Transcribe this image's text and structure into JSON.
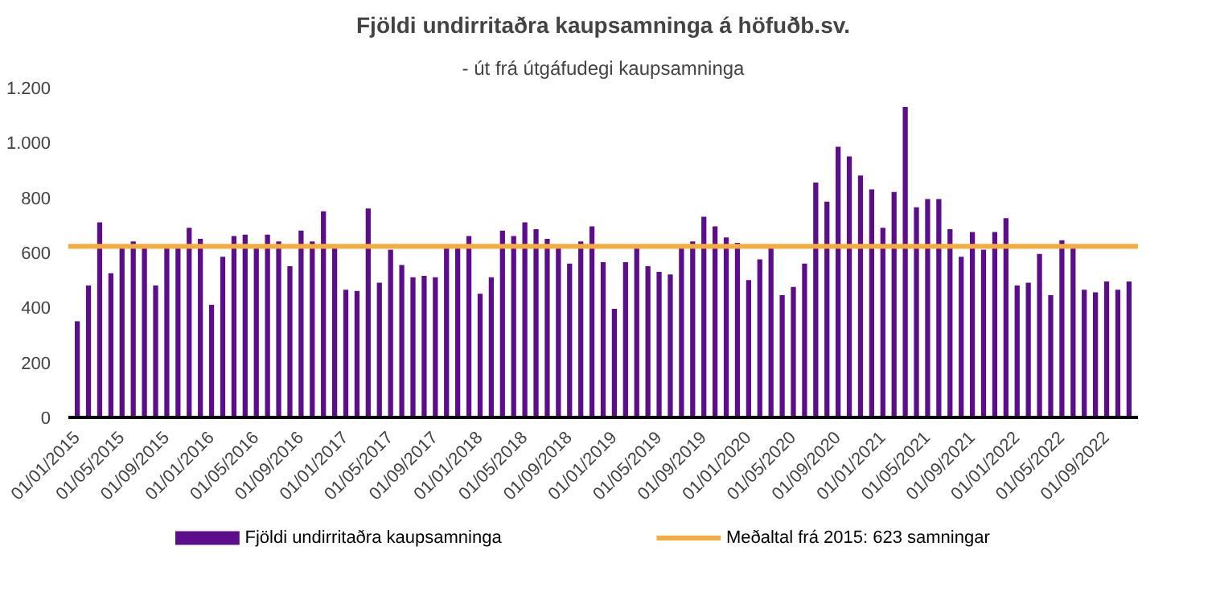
{
  "chart_data": {
    "type": "bar",
    "title": "Fjöldi undirritaðra kaupsamninga á höfuðb.sv.",
    "subtitle": "- út frá útgáfudegi kaupsamninga",
    "categories": [
      "01/01/2015",
      null,
      null,
      null,
      "01/05/2015",
      null,
      null,
      null,
      "01/09/2015",
      null,
      null,
      null,
      "01/01/2016",
      null,
      null,
      null,
      "01/05/2016",
      null,
      null,
      null,
      "01/09/2016",
      null,
      null,
      null,
      "01/01/2017",
      null,
      null,
      null,
      "01/05/2017",
      null,
      null,
      null,
      "01/09/2017",
      null,
      null,
      null,
      "01/01/2018",
      null,
      null,
      null,
      "01/05/2018",
      null,
      null,
      null,
      "01/09/2018",
      null,
      null,
      null,
      "01/01/2019",
      null,
      null,
      null,
      "01/05/2019",
      null,
      null,
      null,
      "01/09/2019",
      null,
      null,
      null,
      "01/01/2020",
      null,
      null,
      null,
      "01/05/2020",
      null,
      null,
      null,
      "01/09/2020",
      null,
      null,
      null,
      "01/01/2021",
      null,
      null,
      null,
      "01/05/2021",
      null,
      null,
      null,
      "01/09/2021",
      null,
      null,
      null,
      "01/01/2022",
      null,
      null,
      null,
      "01/05/2022",
      null,
      null,
      null,
      "01/09/2022",
      null,
      null
    ],
    "series": [
      {
        "name": "Fjöldi undirritaðra kaupsamninga",
        "color": "#5b0d8c",
        "values": [
          350,
          480,
          710,
          525,
          615,
          640,
          615,
          480,
          615,
          615,
          690,
          650,
          410,
          585,
          660,
          665,
          615,
          665,
          640,
          550,
          680,
          640,
          750,
          615,
          465,
          460,
          760,
          490,
          610,
          555,
          510,
          515,
          510,
          615,
          615,
          660,
          450,
          510,
          680,
          660,
          710,
          685,
          650,
          615,
          560,
          640,
          695,
          565,
          395,
          565,
          615,
          550,
          530,
          520,
          615,
          640,
          730,
          695,
          655,
          635,
          500,
          575,
          615,
          445,
          475,
          560,
          855,
          785,
          985,
          950,
          880,
          830,
          690,
          820,
          1130,
          765,
          795,
          795,
          685,
          585,
          675,
          610,
          675,
          725,
          480,
          490,
          595,
          445,
          645,
          615,
          465,
          455,
          495,
          465,
          495
        ]
      }
    ],
    "ylim": [
      0,
      1200
    ],
    "yticks": [
      0,
      200,
      400,
      600,
      800,
      {
        "value": 1000,
        "label": "1.000"
      },
      {
        "value": 1200,
        "label": "1.200"
      }
    ],
    "ref_lines": [
      {
        "axis": "y",
        "value": 623,
        "label": "Meðaltal frá 2015: 623 samningar",
        "color": "#f5ac3c"
      }
    ],
    "grid": false,
    "legend": "bottom"
  }
}
